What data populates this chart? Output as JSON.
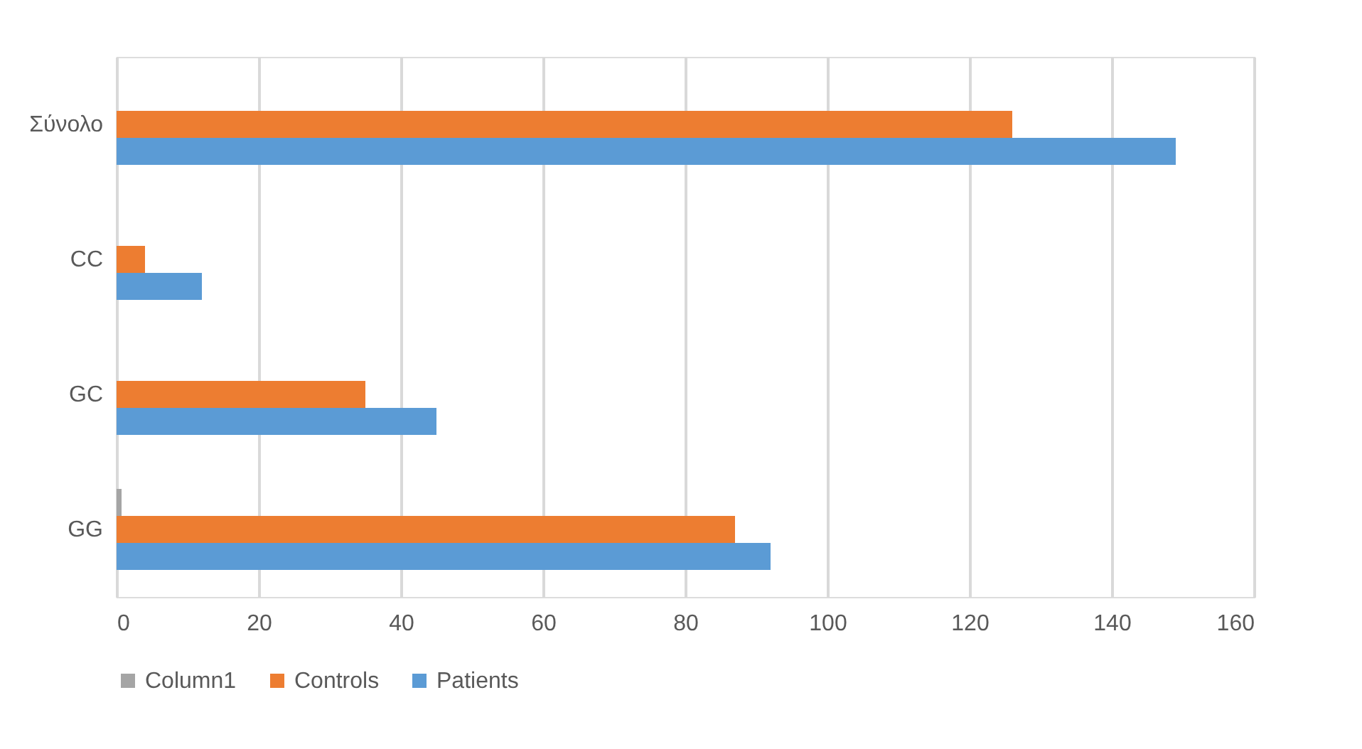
{
  "chart_data": {
    "type": "bar",
    "orientation": "horizontal",
    "categories": [
      "Σύνολο",
      "CC",
      "GC",
      "GG"
    ],
    "series": [
      {
        "name": "Column1",
        "color": "#a5a5a5",
        "values": [
          null,
          null,
          null,
          0.7
        ]
      },
      {
        "name": "Controls",
        "color": "#ed7d31",
        "values": [
          126,
          4,
          35,
          87
        ]
      },
      {
        "name": "Patients",
        "color": "#5b9bd5",
        "values": [
          149,
          12,
          45,
          92
        ]
      }
    ],
    "xlim": [
      0,
      160
    ],
    "xticks": [
      0,
      20,
      40,
      60,
      80,
      100,
      120,
      140,
      160
    ],
    "grid": "x",
    "legend": "bottom"
  }
}
